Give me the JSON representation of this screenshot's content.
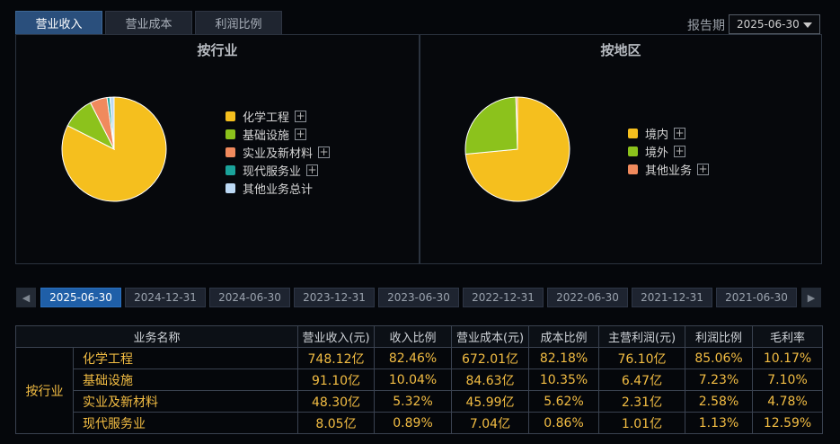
{
  "tabs": [
    {
      "label": "营业收入",
      "active": true
    },
    {
      "label": "营业成本",
      "active": false
    },
    {
      "label": "利润比例",
      "active": false
    }
  ],
  "report_period": {
    "label": "报告期",
    "value": "2025-06-30"
  },
  "industry_panel": {
    "title": "按行业",
    "legend": [
      {
        "label": "化学工程",
        "color": "#f5bf1e",
        "expandable": true
      },
      {
        "label": "基础设施",
        "color": "#8cc21c",
        "expandable": true
      },
      {
        "label": "实业及新材料",
        "color": "#f08a5d",
        "expandable": true
      },
      {
        "label": "现代服务业",
        "color": "#1aa39b",
        "expandable": true
      },
      {
        "label": "其他业务总计",
        "color": "#bcd9f5",
        "expandable": false
      }
    ]
  },
  "region_panel": {
    "title": "按地区",
    "legend": [
      {
        "label": "境内",
        "color": "#f5bf1e",
        "expandable": true
      },
      {
        "label": "境外",
        "color": "#8cc21c",
        "expandable": true
      },
      {
        "label": "其他业务",
        "color": "#f08a5d",
        "expandable": true
      }
    ]
  },
  "chart_data": [
    {
      "type": "pie",
      "title": "按行业",
      "categories": [
        "化学工程",
        "基础设施",
        "实业及新材料",
        "现代服务业",
        "其他业务总计"
      ],
      "values": [
        82.46,
        10.04,
        5.32,
        0.89,
        1.29
      ]
    },
    {
      "type": "pie",
      "title": "按地区",
      "categories": [
        "境内",
        "境外",
        "其他业务"
      ],
      "values": [
        73.5,
        26.0,
        0.5
      ]
    }
  ],
  "dates": [
    "2025-06-30",
    "2024-12-31",
    "2024-06-30",
    "2023-12-31",
    "2023-06-30",
    "2022-12-31",
    "2022-06-30",
    "2021-12-31",
    "2021-06-30"
  ],
  "active_date_index": 0,
  "table": {
    "headers": [
      "业务名称",
      "营业收入(元)",
      "收入比例",
      "营业成本(元)",
      "成本比例",
      "主营利润(元)",
      "利润比例",
      "毛利率"
    ],
    "group_label": "按行业",
    "rows": [
      [
        "化学工程",
        "748.12亿",
        "82.46%",
        "672.01亿",
        "82.18%",
        "76.10亿",
        "85.06%",
        "10.17%"
      ],
      [
        "基础设施",
        "91.10亿",
        "10.04%",
        "84.63亿",
        "10.35%",
        "6.47亿",
        "7.23%",
        "7.10%"
      ],
      [
        "实业及新材料",
        "48.30亿",
        "5.32%",
        "45.99亿",
        "5.62%",
        "2.31亿",
        "2.58%",
        "4.78%"
      ],
      [
        "现代服务业",
        "8.05亿",
        "0.89%",
        "7.04亿",
        "0.86%",
        "1.01亿",
        "1.13%",
        "12.59%"
      ]
    ]
  }
}
